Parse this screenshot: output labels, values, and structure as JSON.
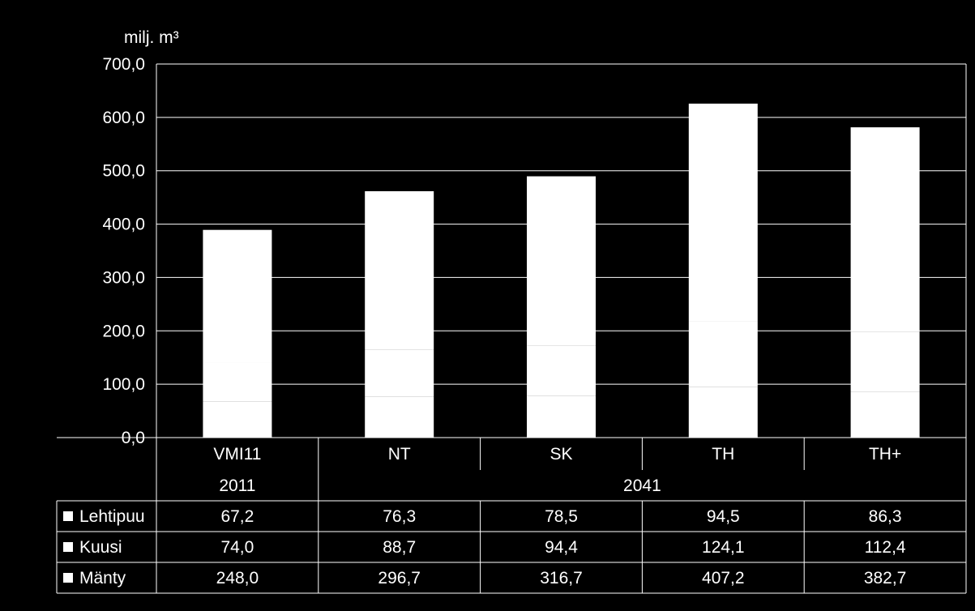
{
  "chart_data": {
    "type": "bar",
    "stacked": true,
    "unit_label": "milj. m³",
    "ylim": [
      0,
      700
    ],
    "yticks": [
      "0,0",
      "100,0",
      "200,0",
      "300,0",
      "400,0",
      "500,0",
      "600,0",
      "700,0"
    ],
    "ytick_values": [
      0,
      100,
      200,
      300,
      400,
      500,
      600,
      700
    ],
    "grid": true,
    "legend": "data-table",
    "categories": [
      "VMI11",
      "NT",
      "SK",
      "TH",
      "TH+"
    ],
    "groups": [
      {
        "label": "2011",
        "categories": [
          "VMI11"
        ]
      },
      {
        "label": "2041",
        "categories": [
          "NT",
          "SK",
          "TH",
          "TH+"
        ]
      }
    ],
    "series": [
      {
        "name": "Lehtipuu",
        "values": [
          67.2,
          76.3,
          78.5,
          94.5,
          86.3
        ],
        "labels": [
          "67,2",
          "76,3",
          "78,5",
          "94,5",
          "86,3"
        ],
        "color": "#ffffff"
      },
      {
        "name": "Kuusi",
        "values": [
          74.0,
          88.7,
          94.4,
          124.1,
          112.4
        ],
        "labels": [
          "74,0",
          "88,7",
          "94,4",
          "124,1",
          "112,4"
        ],
        "color": "#ffffff"
      },
      {
        "name": "Mänty",
        "values": [
          248.0,
          296.7,
          316.7,
          407.2,
          382.7
        ],
        "labels": [
          "248,0",
          "296,7",
          "316,7",
          "407,2",
          "382,7"
        ],
        "color": "#ffffff"
      }
    ],
    "colors": {
      "background": "#000000",
      "foreground": "#ffffff",
      "bar": "#ffffff"
    }
  }
}
